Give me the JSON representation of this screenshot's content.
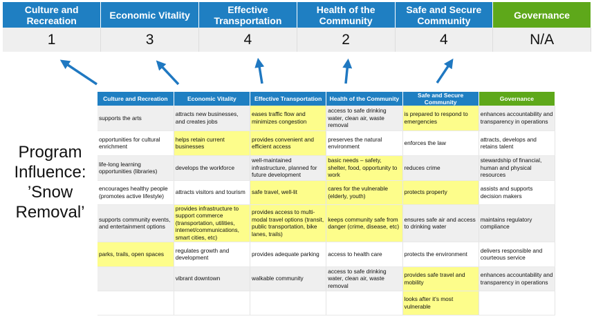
{
  "scores": {
    "headers": [
      "Culture and Recreation",
      "Economic Vitality",
      "Effective Transportation",
      "Health of the Community",
      "Safe and Secure Community",
      "Governance"
    ],
    "values": [
      "1",
      "3",
      "4",
      "2",
      "4",
      "N/A"
    ]
  },
  "program_label": "Program Influence: ’Snow Removal’",
  "colors": {
    "header_blue": "#1f7fc2",
    "governance_green": "#5ea81a",
    "highlight_yellow": "#fdfd8b",
    "arrow_blue": "#1f78c1"
  },
  "grid": {
    "headers": [
      "Culture and Recreation",
      "Economic Vitality",
      "Effective Transportation",
      "Health of the Community",
      "Safe and Secure Community",
      "Governance"
    ],
    "rows": [
      {
        "cells": [
          "supports the arts",
          "attracts new businesses, and creates jobs",
          "eases traffic flow and minimizes congestion",
          "access to safe drinking water, clean air, waste removal",
          "is prepared to respond to emergencies",
          "enhances accountability and transparency in operations"
        ],
        "highlighted": [
          false,
          false,
          true,
          false,
          true,
          false
        ]
      },
      {
        "cells": [
          "opportunities for cultural enrichment",
          "helps retain current businesses",
          "provides convenient and efficient access",
          "preserves the natural environment",
          "enforces the law",
          "attracts, develops and retains talent"
        ],
        "highlighted": [
          false,
          true,
          true,
          false,
          false,
          false
        ]
      },
      {
        "cells": [
          "life-long learning opportunities (libraries)",
          "develops the workforce",
          "well-maintained infrastructure, planned for future development",
          "basic needs – safety, shelter, food, opportunity to work",
          "reduces crime",
          "stewardship of financial, human and physical resources"
        ],
        "highlighted": [
          false,
          false,
          false,
          true,
          false,
          false
        ]
      },
      {
        "cells": [
          "encourages healthy people (promotes active lifestyle)",
          "attracts visitors and tourism",
          "safe travel, well-lit",
          "cares for the vulnerable (elderly, youth)",
          "protects property",
          "assists and supports decision makers"
        ],
        "highlighted": [
          false,
          false,
          true,
          true,
          true,
          false
        ]
      },
      {
        "cells": [
          "supports community events, and entertainment options",
          "provides infrastructure to support commerce (transportation, utilities, internet/communications, smart cities, etc)",
          "provides access to multi-modal travel options (transit, public transportation, bike lanes, trails)",
          "keeps community safe from danger (crime, disease, etc)",
          "ensures safe air and access to drinking water",
          "maintains regulatory compliance"
        ],
        "highlighted": [
          false,
          true,
          true,
          true,
          false,
          false
        ]
      },
      {
        "cells": [
          "parks, trails, open spaces",
          "regulates growth and development",
          "provides adequate parking",
          "access to health care",
          "protects the environment",
          "delivers responsible and courteous service"
        ],
        "highlighted": [
          true,
          false,
          false,
          false,
          false,
          false
        ]
      },
      {
        "cells": [
          "",
          "vibrant downtown",
          "walkable community",
          "access to safe drinking water, clean air, waste removal",
          "provides safe travel and mobility",
          "enhances accountability and transparency in operations"
        ],
        "highlighted": [
          false,
          false,
          false,
          false,
          true,
          false
        ]
      },
      {
        "cells": [
          "",
          "",
          "",
          "",
          "looks after it's most vulnerable",
          ""
        ],
        "highlighted": [
          false,
          false,
          false,
          false,
          true,
          false
        ]
      }
    ]
  }
}
